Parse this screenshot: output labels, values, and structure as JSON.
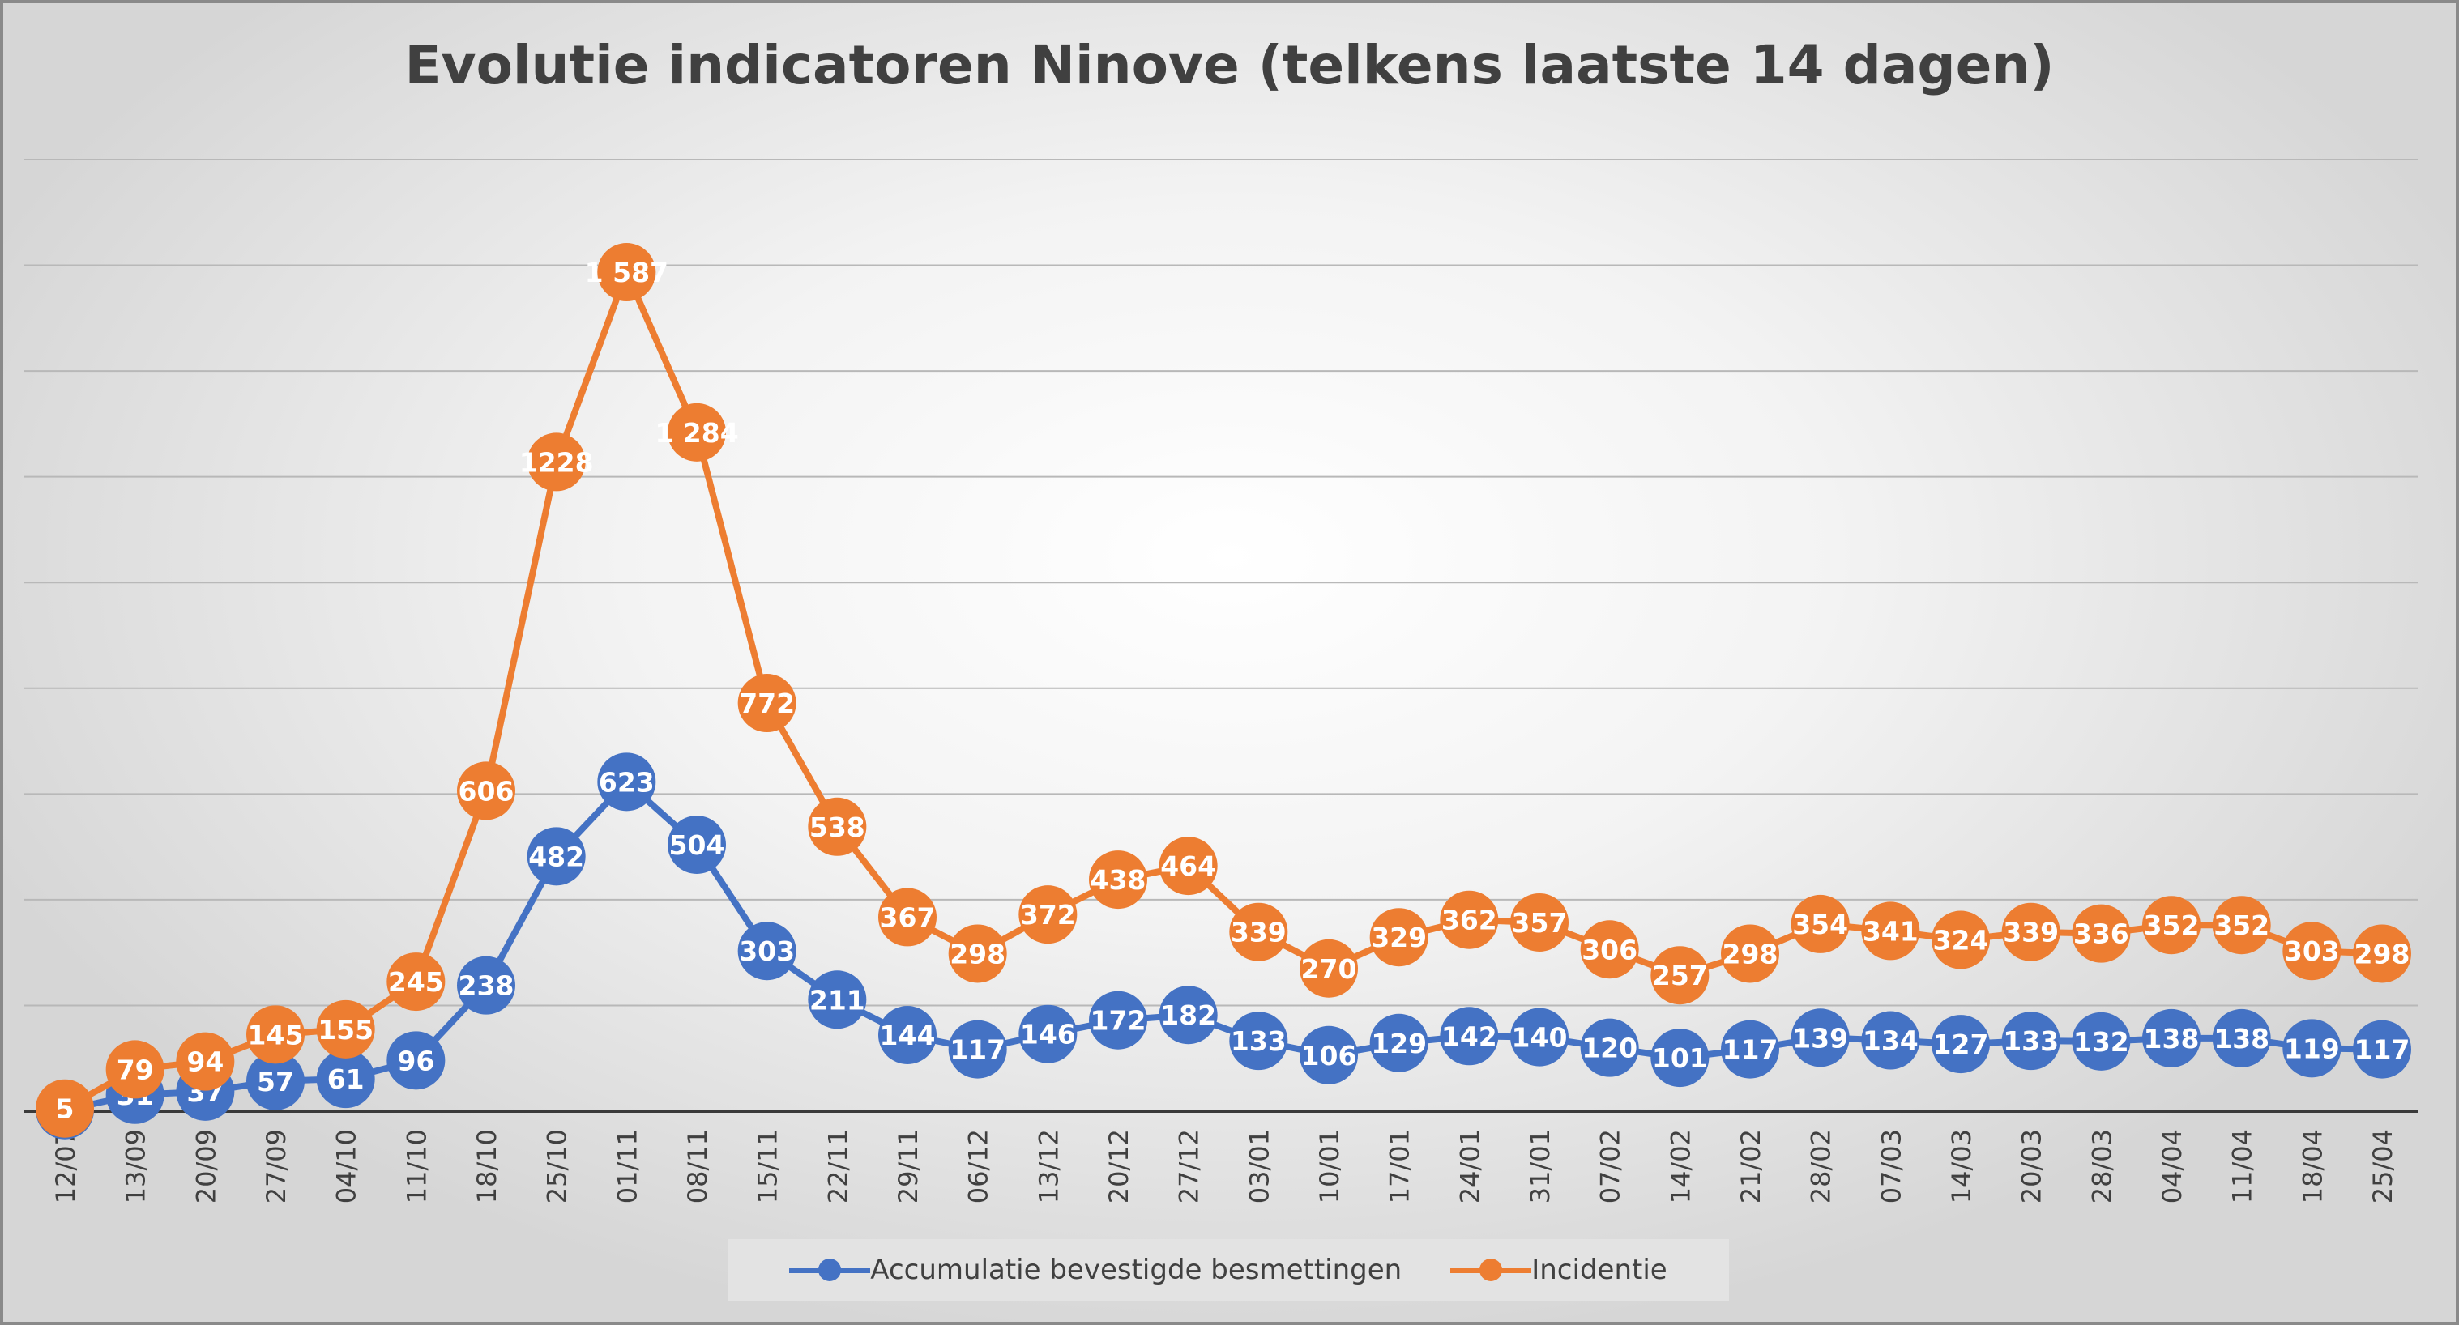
{
  "chart_data": {
    "type": "line",
    "title": "Evolutie indicatoren Ninove (telkens laatste 14 dagen)",
    "categories": [
      "12/07",
      "13/09",
      "20/09",
      "27/09",
      "04/10",
      "11/10",
      "18/10",
      "25/10",
      "01/11",
      "08/11",
      "15/11",
      "22/11",
      "29/11",
      "06/12",
      "13/12",
      "20/12",
      "27/12",
      "03/01",
      "10/01",
      "17/01",
      "24/01",
      "31/01",
      "07/02",
      "14/02",
      "21/02",
      "28/02",
      "07/03",
      "14/03",
      "20/03",
      "28/03",
      "04/04",
      "11/04",
      "18/04",
      "25/04"
    ],
    "series": [
      {
        "name": "Accumulatie bevestigde besmettingen",
        "color": "#4472c4",
        "values": [
          2,
          31,
          37,
          57,
          61,
          96,
          238,
          482,
          623,
          504,
          303,
          211,
          144,
          117,
          146,
          172,
          182,
          133,
          106,
          129,
          142,
          140,
          120,
          101,
          117,
          139,
          134,
          127,
          133,
          132,
          138,
          138,
          119,
          117
        ],
        "labels": [
          "2",
          "31",
          "37",
          "57",
          "61",
          "96",
          "238",
          "482",
          "623",
          "504",
          "303",
          "211",
          "144",
          "117",
          "146",
          "172",
          "182",
          "133",
          "106",
          "129",
          "142",
          "140",
          "120",
          "101",
          "117",
          "139",
          "134",
          "127",
          "133",
          "132",
          "138",
          "138",
          "119",
          "117"
        ]
      },
      {
        "name": "Incidentie",
        "color": "#ed7d31",
        "values": [
          5,
          79,
          94,
          145,
          155,
          245,
          606,
          1228,
          1587,
          1284,
          772,
          538,
          367,
          298,
          372,
          438,
          464,
          339,
          270,
          329,
          362,
          357,
          306,
          257,
          298,
          354,
          341,
          324,
          339,
          336,
          352,
          352,
          303,
          298
        ],
        "labels": [
          "5",
          "79",
          "94",
          "145",
          "155",
          "245",
          "606",
          "1228",
          "1 587",
          "1 284",
          "772",
          "538",
          "367",
          "298",
          "372",
          "438",
          "464",
          "339",
          "270",
          "329",
          "362",
          "357",
          "306",
          "257",
          "298",
          "354",
          "341",
          "324",
          "339",
          "336",
          "352",
          "352",
          "303",
          "298"
        ]
      }
    ],
    "ylim": [
      0,
      1800
    ],
    "ytick_step": 200,
    "grid": true,
    "legend": "bottom"
  }
}
